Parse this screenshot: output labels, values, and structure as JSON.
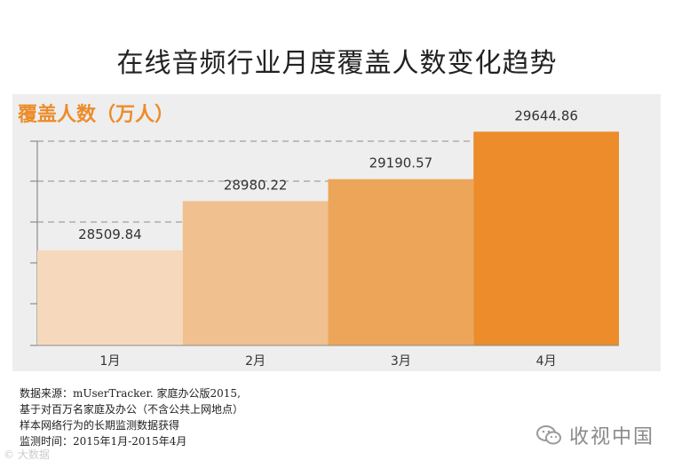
{
  "title": "在线音频行业月度覆盖人数变化趋势",
  "source_note": [
    "数据来源：mUserTracker. 家庭办公版2015,",
    "基于对百万名家庭及办公（不含公共上网地点）",
    "样本网络行为的长期监测数据获得",
    "监测时间：2015年1月-2015年4月"
  ],
  "brand": {
    "name": "收视中国",
    "icon": "wechat-icon"
  },
  "watermark": "© 大数据",
  "colors": {
    "accent": "#ec8c2a",
    "panel": "#eeeeee",
    "bars": [
      "#f6d9bd",
      "#f0c08f",
      "#eda659",
      "#ec8c2a"
    ]
  },
  "chart_data": {
    "type": "bar",
    "categories": [
      "1月",
      "2月",
      "3月",
      "4月"
    ],
    "values": [
      28509.84,
      28980.22,
      29190.57,
      29644.86
    ],
    "value_labels": [
      "28509.84",
      "28980.22",
      "29190.57",
      "29644.86"
    ],
    "ylabel": "覆盖人数（万人）",
    "title": "在线音频行业月度覆盖人数变化趋势",
    "ylim": [
      27600,
      29800
    ],
    "grid": true,
    "grid_style": "dashed"
  }
}
